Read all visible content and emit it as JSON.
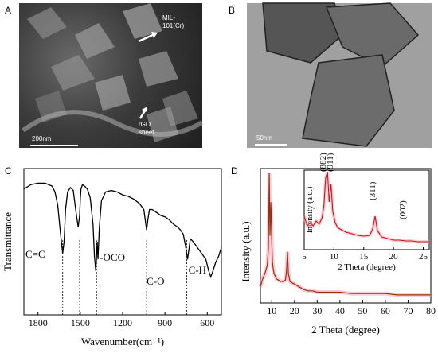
{
  "panels": {
    "a": {
      "letter": "A",
      "label_mil": "MIL-",
      "label_mil2": "101(Cr)",
      "label_rgo": "rGO",
      "label_rgo2": "sheet",
      "scale": "200nm"
    },
    "b": {
      "letter": "B",
      "scale": "50nm"
    },
    "c": {
      "letter": "C"
    },
    "d": {
      "letter": "D"
    }
  },
  "chart_data": [
    {
      "type": "line",
      "panel": "C",
      "xlabel": "Wavenumber(cm⁻¹)",
      "ylabel": "Transmittance",
      "xlim": [
        1900,
        500
      ],
      "x_reversed": true,
      "xticks": [
        1800,
        1500,
        1200,
        900,
        600
      ],
      "grid": false,
      "series": [
        {
          "x": [
            1900,
            1850,
            1800,
            1750,
            1700,
            1680,
            1660,
            1640,
            1625,
            1615,
            1605,
            1590,
            1570,
            1550,
            1530,
            1515,
            1505,
            1500,
            1495,
            1485,
            1470,
            1450,
            1430,
            1410,
            1400,
            1390,
            1385,
            1380,
            1375,
            1365,
            1350,
            1320,
            1280,
            1240,
            1200,
            1160,
            1120,
            1080,
            1050,
            1030,
            1020,
            1010,
            990,
            960,
            930,
            900,
            870,
            840,
            810,
            790,
            770,
            750,
            740,
            730,
            720,
            700,
            670,
            640,
            610,
            590,
            575,
            560,
            540,
            520,
            500
          ],
          "y": [
            0.86,
            0.89,
            0.9,
            0.9,
            0.88,
            0.84,
            0.75,
            0.55,
            0.42,
            0.5,
            0.72,
            0.84,
            0.87,
            0.85,
            0.7,
            0.6,
            0.68,
            0.8,
            0.86,
            0.89,
            0.88,
            0.86,
            0.8,
            0.62,
            0.4,
            0.3,
            0.4,
            0.5,
            0.38,
            0.6,
            0.78,
            0.84,
            0.85,
            0.84,
            0.82,
            0.81,
            0.79,
            0.76,
            0.72,
            0.58,
            0.66,
            0.72,
            0.72,
            0.7,
            0.68,
            0.67,
            0.65,
            0.62,
            0.6,
            0.58,
            0.55,
            0.45,
            0.38,
            0.45,
            0.52,
            0.5,
            0.46,
            0.42,
            0.38,
            0.3,
            0.26,
            0.3,
            0.36,
            0.4,
            0.46
          ]
        }
      ],
      "annotations": [
        {
          "text": "C=C",
          "x": 1625
        },
        {
          "text": "-OCO",
          "x": 1385
        },
        {
          "text": "C-O",
          "x": 1030
        },
        {
          "text": "C-H",
          "x": 745
        }
      ],
      "extra_dashed_x": [
        1505
      ]
    },
    {
      "type": "line",
      "panel": "D",
      "xlabel": "2 Theta (degree)",
      "ylabel": "Intensity (a.u.)",
      "xlim": [
        5,
        80
      ],
      "xticks": [
        10,
        20,
        30,
        40,
        50,
        60,
        70,
        80
      ],
      "grid": false,
      "series": [
        {
          "name": "",
          "x": [
            5,
            6,
            7,
            8,
            8.5,
            8.9,
            9.2,
            9.6,
            10,
            10.3,
            10.6,
            11,
            12,
            13,
            14,
            15,
            16,
            16.5,
            16.9,
            17.3,
            18,
            19,
            20,
            22,
            24,
            26,
            28,
            30,
            35,
            40,
            45,
            50,
            55,
            60,
            65,
            70,
            75,
            80
          ],
          "y": [
            0.12,
            0.18,
            0.22,
            0.28,
            0.4,
            0.97,
            0.5,
            0.75,
            0.45,
            0.3,
            0.26,
            0.22,
            0.18,
            0.17,
            0.16,
            0.16,
            0.17,
            0.24,
            0.38,
            0.22,
            0.16,
            0.15,
            0.14,
            0.12,
            0.1,
            0.09,
            0.09,
            0.08,
            0.08,
            0.08,
            0.07,
            0.07,
            0.07,
            0.07,
            0.06,
            0.06,
            0.06,
            0.06
          ]
        }
      ]
    },
    {
      "type": "line",
      "panel": "D inset",
      "xlabel": "2 Theta (degree)",
      "ylabel": "Intensity (a.u.)",
      "xlim": [
        5,
        26
      ],
      "xticks": [
        5,
        10,
        15,
        20,
        25
      ],
      "series": [
        {
          "x": [
            5,
            5.5,
            6,
            6.5,
            7,
            7.5,
            8,
            8.3,
            8.6,
            8.9,
            9.2,
            9.5,
            9.8,
            10.2,
            10.6,
            11,
            12,
            13,
            14,
            15,
            16,
            16.5,
            16.9,
            17.3,
            18,
            19,
            20,
            21,
            22,
            23,
            24,
            25,
            26
          ],
          "y": [
            0.42,
            0.3,
            0.34,
            0.3,
            0.36,
            0.32,
            0.4,
            0.55,
            0.9,
            0.98,
            0.6,
            0.82,
            0.48,
            0.34,
            0.28,
            0.26,
            0.22,
            0.2,
            0.18,
            0.17,
            0.18,
            0.26,
            0.42,
            0.24,
            0.16,
            0.14,
            0.12,
            0.12,
            0.11,
            0.11,
            0.1,
            0.1,
            0.1
          ]
        }
      ],
      "annotations": [
        {
          "text": "(882)",
          "x": 8.6
        },
        {
          "text": "(911)",
          "x": 9.8
        },
        {
          "text": "(311)",
          "x": 16.9
        },
        {
          "text": "(002)",
          "x": 22
        }
      ]
    }
  ]
}
